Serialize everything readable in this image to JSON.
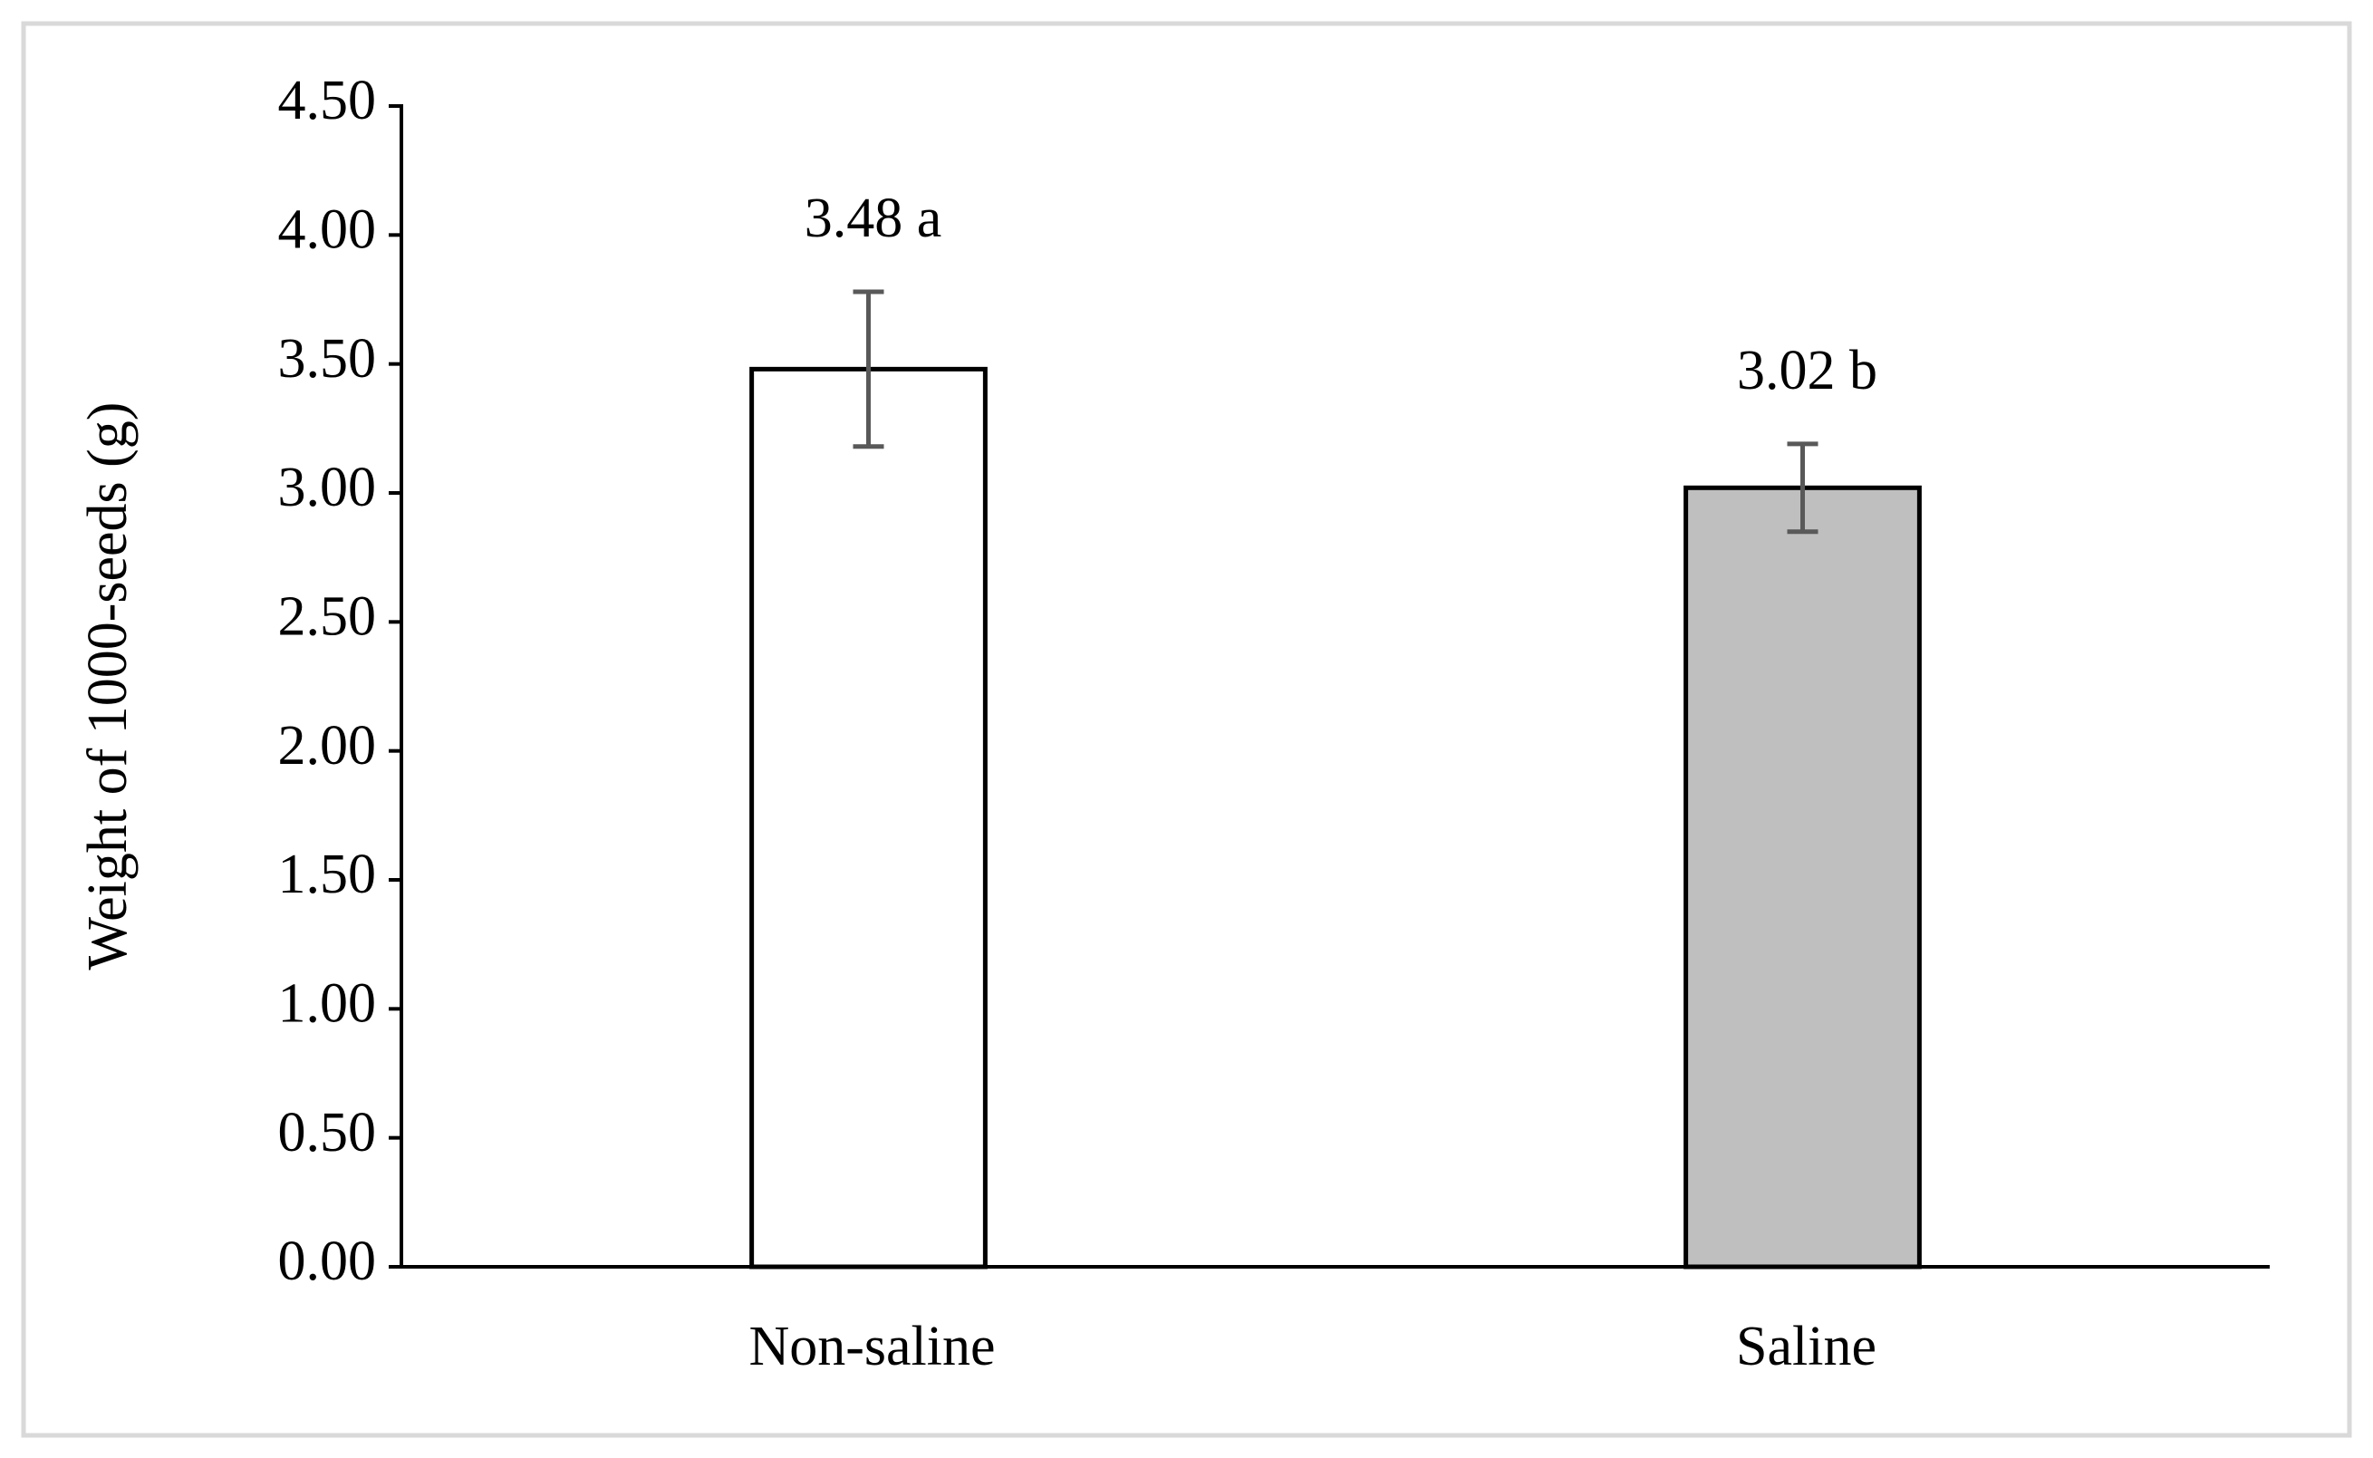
{
  "chart_data": {
    "type": "bar",
    "y_label": "Weight of 1000-seeds (g)",
    "categories": [
      "Non-saline",
      "Saline"
    ],
    "values": [
      3.48,
      3.02
    ],
    "value_labels": [
      "3.48 a",
      "3.02 b"
    ],
    "errors": [
      0.3,
      0.17
    ],
    "colors": [
      "#ffffff",
      "#bfbfbf"
    ],
    "ylim": [
      0,
      4.5
    ],
    "yticks": [
      {
        "value": 0,
        "label": "0.00"
      },
      {
        "value": 0.5,
        "label": "0.50"
      },
      {
        "value": 1,
        "label": "1.00"
      },
      {
        "value": 1.5,
        "label": "1.50"
      },
      {
        "value": 2,
        "label": "2.00"
      },
      {
        "value": 2.5,
        "label": "2.50"
      },
      {
        "value": 3,
        "label": "3.00"
      },
      {
        "value": 3.5,
        "label": "3.50"
      },
      {
        "value": 4,
        "label": "4.00"
      },
      {
        "value": 4.5,
        "label": "4.50"
      }
    ],
    "grid": false
  }
}
